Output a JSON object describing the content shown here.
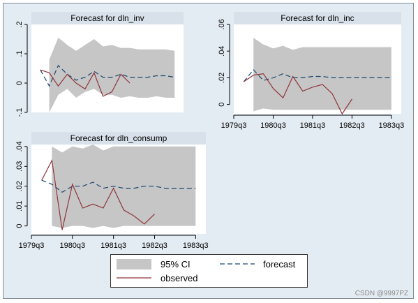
{
  "watermark": "CSDN @9997PZ",
  "colors": {
    "frame_bg": "#e4ecf3",
    "title_bg": "#d8e1ea",
    "ci_fill": "#c6c6c6",
    "forecast": "#1a476f",
    "observed": "#90353b"
  },
  "legend": {
    "ci_label": "95% CI",
    "forecast_label": "forecast",
    "observed_label": "observed"
  },
  "chart_data": [
    {
      "type": "line",
      "title": "Forecast for dln_inv",
      "x": [
        1979.75,
        1980.0,
        1980.25,
        1980.5,
        1980.75,
        1981.0,
        1981.25,
        1981.5,
        1981.75,
        1982.0,
        1982.25,
        1982.5,
        1982.75,
        1983.0,
        1983.25,
        1983.5
      ],
      "xlim": [
        1979.5,
        1983.75
      ],
      "ylim": [
        -0.1,
        0.2
      ],
      "yticks": [
        -0.1,
        0,
        0.1,
        0.2
      ],
      "ytick_labels": [
        "-.1",
        "0",
        ".1",
        ".2"
      ],
      "xticks": [],
      "xtick_labels": [],
      "series": [
        {
          "name": "95% CI",
          "kind": "band",
          "x": [
            1980.0,
            1980.25,
            1980.5,
            1980.75,
            1981.0,
            1981.25,
            1981.5,
            1981.75,
            1982.0,
            1982.25,
            1982.5,
            1982.75,
            1983.0,
            1983.25,
            1983.5
          ],
          "upper": [
            0.08,
            0.155,
            0.13,
            0.11,
            0.13,
            0.15,
            0.125,
            0.13,
            0.12,
            0.12,
            0.115,
            0.115,
            0.115,
            0.115,
            0.11
          ],
          "lower": [
            -0.1,
            -0.04,
            -0.02,
            -0.05,
            -0.03,
            -0.02,
            -0.04,
            -0.04,
            -0.05,
            -0.045,
            -0.05,
            -0.05,
            -0.045,
            -0.05,
            -0.05
          ]
        },
        {
          "name": "forecast",
          "kind": "line",
          "x": [
            1979.75,
            1980.0,
            1980.25,
            1980.5,
            1980.75,
            1981.0,
            1981.25,
            1981.5,
            1981.75,
            1982.0,
            1982.25,
            1982.5,
            1982.75,
            1983.0,
            1983.25,
            1983.5
          ],
          "values": [
            0.045,
            -0.01,
            0.06,
            0.03,
            0.01,
            0.02,
            0.04,
            0.02,
            0.02,
            0.03,
            0.02,
            0.02,
            0.02,
            0.025,
            0.025,
            0.02
          ]
        },
        {
          "name": "observed",
          "kind": "line",
          "x": [
            1979.75,
            1980.0,
            1980.25,
            1980.5,
            1980.75,
            1981.0,
            1981.25,
            1981.5,
            1981.75,
            1982.0,
            1982.25
          ],
          "values": [
            0.045,
            0.035,
            -0.01,
            0.03,
            0.0,
            -0.02,
            0.035,
            -0.045,
            -0.03,
            0.03,
            0.0
          ]
        }
      ]
    },
    {
      "type": "line",
      "title": "Forecast for dln_inc",
      "x": [
        1979.75,
        1980.0,
        1980.25,
        1980.5,
        1980.75,
        1981.0,
        1981.25,
        1981.5,
        1981.75,
        1982.0,
        1982.25,
        1982.5,
        1982.75,
        1983.0,
        1983.25,
        1983.5
      ],
      "xlim": [
        1979.5,
        1983.75
      ],
      "ylim": [
        -0.007,
        0.06
      ],
      "yticks": [
        0,
        0.02,
        0.04,
        0.06
      ],
      "ytick_labels": [
        "0",
        ".02",
        ".04",
        ".06"
      ],
      "xticks": [
        1979.5,
        1980.5,
        1981.5,
        1982.5,
        1983.5
      ],
      "xtick_labels": [
        "1979q3",
        "1980q3",
        "1981q3",
        "1982q3",
        "1983q3"
      ],
      "series": [
        {
          "name": "95% CI",
          "kind": "band",
          "x": [
            1980.0,
            1980.25,
            1980.5,
            1980.75,
            1981.0,
            1981.25,
            1981.5,
            1981.75,
            1982.0,
            1982.25,
            1982.5,
            1982.75,
            1983.0,
            1983.25,
            1983.5
          ],
          "upper": [
            0.05,
            0.045,
            0.042,
            0.044,
            0.041,
            0.043,
            0.043,
            0.043,
            0.043,
            0.043,
            0.043,
            0.043,
            0.043,
            0.043,
            0.043
          ],
          "lower": [
            -0.005,
            -0.003,
            -0.004,
            -0.004,
            -0.004,
            -0.004,
            -0.004,
            -0.004,
            -0.004,
            -0.004,
            -0.004,
            -0.004,
            -0.004,
            -0.004,
            -0.004
          ]
        },
        {
          "name": "forecast",
          "kind": "line",
          "x": [
            1979.75,
            1980.0,
            1980.25,
            1980.5,
            1980.75,
            1981.0,
            1981.25,
            1981.5,
            1981.75,
            1982.0,
            1982.25,
            1982.5,
            1982.75,
            1983.0,
            1983.25,
            1983.5
          ],
          "values": [
            0.017,
            0.026,
            0.018,
            0.02,
            0.023,
            0.02,
            0.02,
            0.021,
            0.021,
            0.02,
            0.02,
            0.02,
            0.02,
            0.02,
            0.02,
            0.02
          ]
        },
        {
          "name": "observed",
          "kind": "line",
          "x": [
            1979.75,
            1980.0,
            1980.25,
            1980.5,
            1980.75,
            1981.0,
            1981.25,
            1981.5,
            1981.75,
            1982.0,
            1982.25,
            1982.5
          ],
          "values": [
            0.017,
            0.022,
            0.023,
            0.012,
            0.005,
            0.021,
            0.01,
            0.013,
            0.015,
            0.008,
            -0.007,
            0.004
          ]
        }
      ]
    },
    {
      "type": "line",
      "title": "Forecast for dln_consump",
      "x": [
        1979.75,
        1980.0,
        1980.25,
        1980.5,
        1980.75,
        1981.0,
        1981.25,
        1981.5,
        1981.75,
        1982.0,
        1982.25,
        1982.5,
        1982.75,
        1983.0,
        1983.25,
        1983.5
      ],
      "xlim": [
        1979.5,
        1983.75
      ],
      "ylim": [
        -0.004,
        0.041
      ],
      "yticks": [
        0,
        0.01,
        0.02,
        0.03,
        0.04
      ],
      "ytick_labels": [
        "0",
        ".01",
        ".02",
        ".03",
        ".04"
      ],
      "xticks": [
        1979.5,
        1980.5,
        1981.5,
        1982.5,
        1983.5
      ],
      "xtick_labels": [
        "1979q3",
        "1980q3",
        "1981q3",
        "1982q3",
        "1983q3"
      ],
      "series": [
        {
          "name": "95% CI",
          "kind": "band",
          "x": [
            1980.0,
            1980.25,
            1980.5,
            1980.75,
            1981.0,
            1981.25,
            1981.5,
            1981.75,
            1982.0,
            1982.25,
            1982.5,
            1982.75,
            1983.0,
            1983.25,
            1983.5
          ],
          "upper": [
            0.04,
            0.037,
            0.04,
            0.039,
            0.041,
            0.038,
            0.04,
            0.04,
            0.04,
            0.04,
            0.04,
            0.04,
            0.04,
            0.04,
            0.04
          ],
          "lower": [
            0.0,
            -0.001,
            0.0,
            0.0,
            -0.001,
            0.0,
            -0.001,
            0.0,
            0.0,
            0.0,
            0.0,
            0.0,
            0.0,
            0.0,
            0.0
          ]
        },
        {
          "name": "forecast",
          "kind": "line",
          "x": [
            1979.75,
            1980.0,
            1980.25,
            1980.5,
            1980.75,
            1981.0,
            1981.25,
            1981.5,
            1981.75,
            1982.0,
            1982.25,
            1982.5,
            1982.75,
            1983.0,
            1983.25,
            1983.5
          ],
          "values": [
            0.023,
            0.021,
            0.017,
            0.02,
            0.02,
            0.022,
            0.019,
            0.02,
            0.019,
            0.019,
            0.02,
            0.02,
            0.019,
            0.019,
            0.019,
            0.019
          ]
        },
        {
          "name": "observed",
          "kind": "line",
          "x": [
            1979.75,
            1980.0,
            1980.25,
            1980.5,
            1980.75,
            1981.0,
            1981.25,
            1981.5,
            1981.75,
            1982.0,
            1982.25,
            1982.5
          ],
          "values": [
            0.023,
            0.033,
            -0.002,
            0.021,
            0.009,
            0.011,
            0.009,
            0.019,
            0.008,
            0.005,
            0.001,
            0.006
          ]
        }
      ]
    }
  ]
}
